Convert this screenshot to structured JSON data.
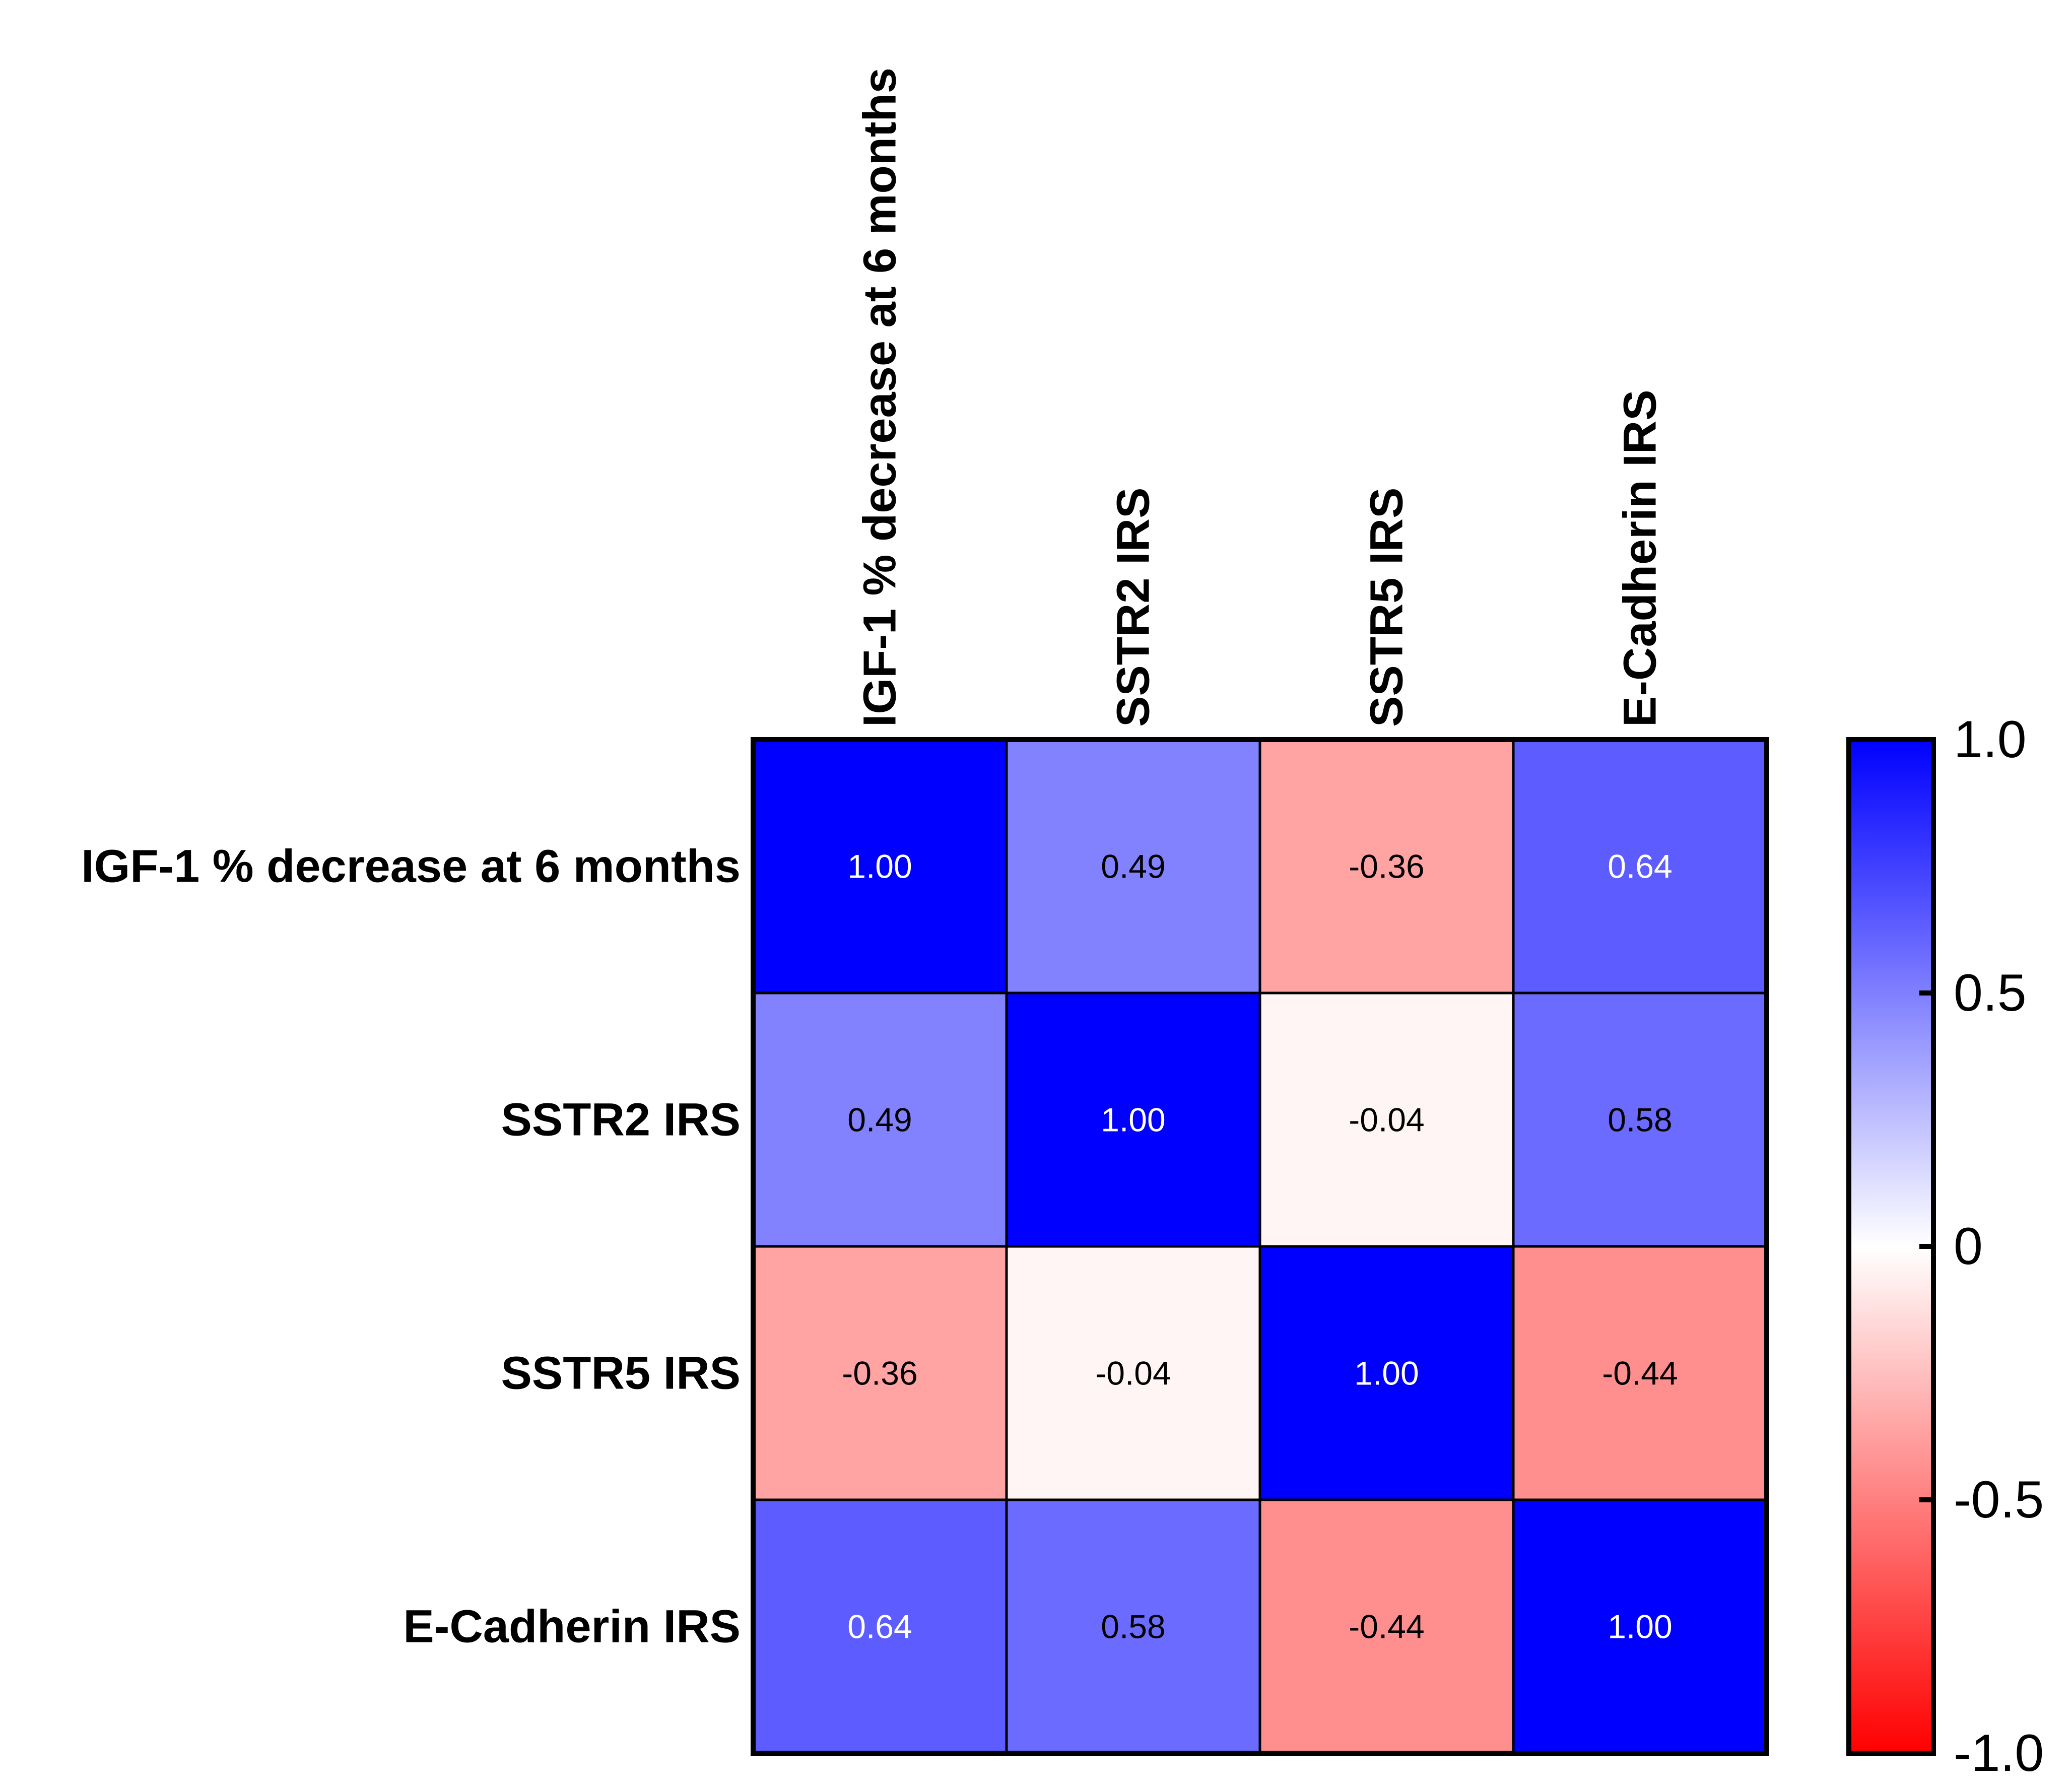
{
  "chart_data": {
    "type": "heatmap",
    "title": "",
    "row_labels": [
      "IGF-1 % decrease at 6 months",
      "SSTR2 IRS",
      "SSTR5 IRS",
      "E-Cadherin IRS"
    ],
    "col_labels": [
      "IGF-1 % decrease at 6 months",
      "SSTR2 IRS",
      "SSTR5 IRS",
      "E-Cadherin IRS"
    ],
    "values": [
      [
        1.0,
        0.49,
        -0.36,
        0.64
      ],
      [
        0.49,
        1.0,
        -0.04,
        0.58
      ],
      [
        -0.36,
        -0.04,
        1.0,
        -0.44
      ],
      [
        0.64,
        0.58,
        -0.44,
        1.0
      ]
    ],
    "value_labels": [
      [
        "1.00",
        "0.49",
        "-0.36",
        "0.64"
      ],
      [
        "0.49",
        "1.00",
        "-0.04",
        "0.58"
      ],
      [
        "-0.36",
        "-0.04",
        "1.00",
        "-0.44"
      ],
      [
        "0.64",
        "0.58",
        "-0.44",
        "1.00"
      ]
    ],
    "colorbar": {
      "range": [
        -1.0,
        1.0
      ],
      "ticks": [
        1.0,
        0.5,
        0,
        -0.5,
        -1.0
      ],
      "tick_labels": [
        "1.0",
        "0.5",
        "0",
        "-0.5",
        "-1.0"
      ],
      "colors": {
        "negative": "#ff0000",
        "zero": "#ffffff",
        "positive": "#0000ff"
      }
    }
  }
}
